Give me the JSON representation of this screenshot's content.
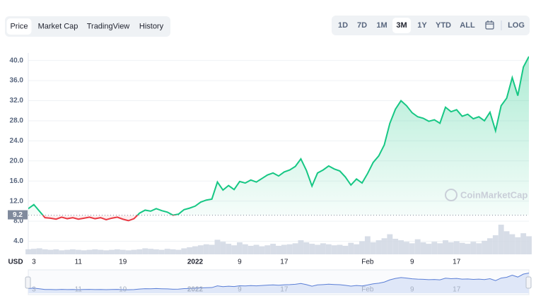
{
  "tabs": [
    "Price",
    "Market Cap",
    "TradingView",
    "History"
  ],
  "active_tab": 0,
  "ranges": [
    "1D",
    "7D",
    "1M",
    "3M",
    "1Y",
    "YTD",
    "ALL"
  ],
  "active_range": 3,
  "log_label": "LOG",
  "chart_data": {
    "type": "line",
    "currency": "USD",
    "watermark": "CoinMarketCap",
    "reference_price": 9.2,
    "up_color": "#16c784",
    "down_color": "#ea3943",
    "volume_color": "#d3d9e4",
    "values": [
      10.5,
      11.3,
      10.0,
      8.7,
      8.6,
      8.4,
      8.8,
      8.5,
      8.7,
      8.4,
      8.6,
      8.8,
      8.5,
      8.7,
      8.3,
      8.6,
      8.8,
      8.4,
      8.1,
      8.5,
      9.6,
      10.2,
      10.0,
      10.5,
      10.1,
      9.8,
      9.2,
      9.4,
      10.3,
      10.6,
      11.0,
      11.8,
      12.2,
      12.4,
      15.8,
      14.2,
      15.1,
      14.3,
      15.9,
      15.6,
      16.2,
      15.8,
      16.5,
      17.2,
      17.6,
      17.0,
      17.8,
      18.2,
      18.9,
      20.4,
      18.1,
      15.0,
      17.6,
      18.2,
      19.0,
      18.4,
      18.0,
      16.8,
      15.2,
      16.4,
      15.6,
      17.5,
      19.7,
      21.0,
      23.2,
      27.5,
      30.3,
      32.0,
      31.0,
      29.6,
      28.8,
      28.5,
      27.9,
      28.2,
      27.5,
      30.7,
      29.8,
      30.2,
      28.9,
      29.3,
      28.4,
      28.8,
      28.0,
      29.7,
      26.0,
      31.0,
      32.5,
      36.6,
      33.0,
      38.7,
      40.8
    ],
    "volume": [
      2.4,
      2.5,
      2.6,
      2.4,
      2.3,
      2.4,
      2.2,
      2.3,
      2.4,
      2.3,
      2.2,
      2.3,
      2.4,
      2.3,
      2.2,
      2.3,
      2.4,
      2.3,
      2.2,
      2.3,
      2.4,
      2.6,
      2.5,
      2.4,
      2.3,
      2.5,
      2.4,
      2.3,
      2.6,
      2.8,
      3.0,
      3.2,
      3.4,
      3.3,
      4.3,
      3.9,
      3.5,
      3.2,
      3.8,
      3.4,
      3.1,
      3.3,
      3.0,
      3.2,
      3.5,
      3.1,
      3.3,
      3.4,
      3.6,
      4.2,
      3.8,
      3.5,
      3.3,
      3.6,
      3.4,
      3.2,
      3.3,
      3.1,
      3.7,
      3.4,
      4.0,
      5.0,
      3.8,
      4.2,
      4.6,
      5.4,
      4.5,
      4.2,
      3.9,
      3.6,
      4.4,
      3.8,
      3.5,
      3.9,
      3.6,
      4.2,
      3.8,
      4.0,
      3.7,
      3.5,
      3.9,
      3.6,
      4.1,
      4.6,
      5.2,
      7.3,
      6.0,
      5.4,
      4.8,
      5.6,
      5.0
    ],
    "xlim": [
      0,
      90
    ],
    "xticks": [
      {
        "value": 1,
        "label": "3"
      },
      {
        "value": 9,
        "label": "11"
      },
      {
        "value": 17,
        "label": "19"
      },
      {
        "value": 30,
        "label": "2022"
      },
      {
        "value": 38,
        "label": "9"
      },
      {
        "value": 46,
        "label": "17"
      },
      {
        "value": 61,
        "label": "Feb"
      },
      {
        "value": 69,
        "label": "9"
      },
      {
        "value": 77,
        "label": "17"
      }
    ],
    "ylim": [
      1.4,
      41.5
    ],
    "yticks": [
      {
        "value": 4,
        "label": "4.0"
      },
      {
        "value": 8,
        "label": "8.0"
      },
      {
        "value": 12,
        "label": "12.0"
      },
      {
        "value": 16,
        "label": "16.0"
      },
      {
        "value": 20,
        "label": "20.0"
      },
      {
        "value": 24,
        "label": "24.0"
      },
      {
        "value": 28,
        "label": "28.0"
      },
      {
        "value": 32,
        "label": "32.0"
      },
      {
        "value": 36,
        "label": "36.0"
      },
      {
        "value": 40,
        "label": "40.0"
      }
    ],
    "grid": true
  }
}
